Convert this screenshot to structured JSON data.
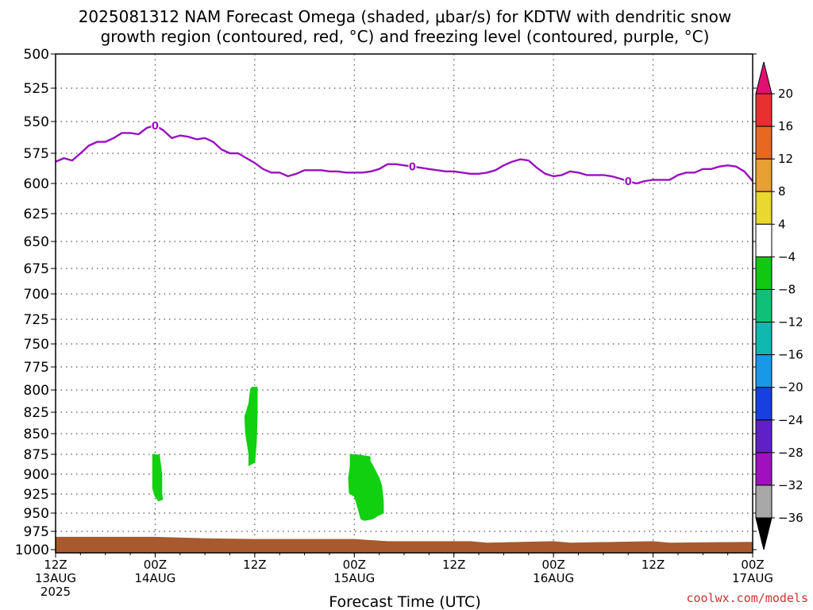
{
  "chart_data": {
    "type": "contour-timeheight",
    "title_lines": [
      "2025081312 NAM Forecast Omega (shaded, μbar/s) for KDTW with dendritic snow",
      "growth region (contoured, red, °C) and freezing level (contoured, purple, °C)"
    ],
    "xlabel": "Forecast Time (UTC)",
    "credit": "coolwx.com/models",
    "xlim_hours": [
      0,
      84
    ],
    "ylim_hpa": [
      500,
      1000
    ],
    "y_ticks": [
      500,
      525,
      550,
      575,
      600,
      625,
      650,
      675,
      700,
      725,
      750,
      775,
      800,
      825,
      850,
      875,
      900,
      925,
      950,
      975,
      1000
    ],
    "x_ticks": [
      {
        "hour": 0,
        "lines": [
          "12Z",
          "13AUG",
          "2025"
        ]
      },
      {
        "hour": 12,
        "lines": [
          "00Z",
          "14AUG"
        ]
      },
      {
        "hour": 24,
        "lines": [
          "12Z"
        ]
      },
      {
        "hour": 36,
        "lines": [
          "00Z",
          "15AUG"
        ]
      },
      {
        "hour": 48,
        "lines": [
          "12Z"
        ]
      },
      {
        "hour": 60,
        "lines": [
          "00Z",
          "16AUG"
        ]
      },
      {
        "hour": 72,
        "lines": [
          "12Z"
        ]
      },
      {
        "hour": 84,
        "lines": [
          "00Z",
          "17AUG"
        ]
      }
    ],
    "colorbar": {
      "ticks": [
        "20",
        "16",
        "12",
        "8",
        "4",
        "−4",
        "−8",
        "−12",
        "−16",
        "−20",
        "−24",
        "−28",
        "−32",
        "−36"
      ],
      "colors": [
        "#e01070",
        "#e83030",
        "#e86820",
        "#e8a030",
        "#e8d830",
        "#ffffff",
        "#10c810",
        "#10c078",
        "#10b8b0",
        "#1898e8",
        "#1840e0",
        "#6020c8",
        "#a010c0",
        "#a8a8a8",
        "#000000"
      ]
    },
    "freezing_level": {
      "color": "#9a10c0",
      "label": "0",
      "label_hours": [
        12,
        43,
        69
      ],
      "hours": [
        0,
        1,
        2,
        3,
        4,
        5,
        6,
        7,
        8,
        9,
        10,
        11,
        12,
        13,
        14,
        15,
        16,
        17,
        18,
        19,
        20,
        21,
        22,
        23,
        24,
        25,
        26,
        27,
        28,
        29,
        30,
        31,
        32,
        33,
        34,
        35,
        36,
        37,
        38,
        39,
        40,
        41,
        42,
        43,
        44,
        45,
        46,
        47,
        48,
        49,
        50,
        51,
        52,
        53,
        54,
        55,
        56,
        57,
        58,
        59,
        60,
        61,
        62,
        63,
        64,
        65,
        66,
        67,
        68,
        69,
        70,
        71,
        72,
        73,
        74,
        75,
        76,
        77,
        78,
        79,
        80,
        81,
        82,
        83,
        84
      ],
      "pressure_hpa": [
        582,
        579,
        581,
        575,
        569,
        566,
        566,
        563,
        559,
        559,
        560,
        555,
        553,
        557,
        563,
        561,
        562,
        564,
        563,
        566,
        572,
        575,
        575,
        579,
        583,
        588,
        591,
        591,
        594,
        592,
        589,
        589,
        589,
        590,
        590,
        591,
        591,
        591,
        590,
        588,
        584,
        584,
        585,
        586,
        587,
        588,
        589,
        590,
        590,
        591,
        592,
        592,
        591,
        589,
        585,
        582,
        580,
        581,
        587,
        592,
        594,
        593,
        590,
        591,
        593,
        593,
        593,
        594,
        596,
        598,
        600,
        598,
        597,
        597,
        597,
        593,
        591,
        591,
        588,
        588,
        586,
        585,
        586,
        590,
        598
      ]
    },
    "omega_regions": [
      {
        "level": "-8 to -4",
        "color": "#10d010",
        "outline": [
          [
            11.7,
            875
          ],
          [
            12.5,
            876
          ],
          [
            12.8,
            900
          ],
          [
            12.8,
            925
          ],
          [
            12.9,
            932
          ],
          [
            12.4,
            934
          ],
          [
            12.0,
            928
          ],
          [
            11.7,
            918
          ]
        ]
      },
      {
        "level": "-8 to -4",
        "color": "#10d010",
        "outline": [
          [
            23.7,
            797
          ],
          [
            24.3,
            797
          ],
          [
            24.3,
            825
          ],
          [
            24.2,
            860
          ],
          [
            24.0,
            885
          ],
          [
            23.3,
            889
          ],
          [
            23.3,
            875
          ],
          [
            22.9,
            850
          ],
          [
            22.8,
            830
          ],
          [
            23.3,
            815
          ],
          [
            23.5,
            799
          ]
        ]
      },
      {
        "level": "-8 to -4",
        "color": "#10d010",
        "outline": [
          [
            35.5,
            875
          ],
          [
            36.6,
            876
          ],
          [
            37.9,
            878
          ],
          [
            37.9,
            883
          ],
          [
            38.4,
            893
          ],
          [
            39.0,
            905
          ],
          [
            39.3,
            915
          ],
          [
            39.5,
            935
          ],
          [
            39.5,
            950
          ],
          [
            38.9,
            953
          ],
          [
            38.2,
            958
          ],
          [
            37.2,
            960
          ],
          [
            36.8,
            958
          ],
          [
            36.3,
            938
          ],
          [
            36.0,
            928
          ],
          [
            35.4,
            924
          ],
          [
            35.3,
            905
          ],
          [
            35.5,
            890
          ]
        ]
      }
    ],
    "surface": {
      "color": "#a85a2e",
      "hours": [
        0,
        6,
        12,
        18,
        24,
        30,
        36,
        40,
        50,
        52,
        60,
        62,
        72,
        74,
        84
      ],
      "pressure_hpa": [
        983,
        983,
        983,
        985,
        986,
        986,
        986,
        989,
        989,
        991,
        989,
        991,
        989,
        991,
        990
      ]
    }
  }
}
